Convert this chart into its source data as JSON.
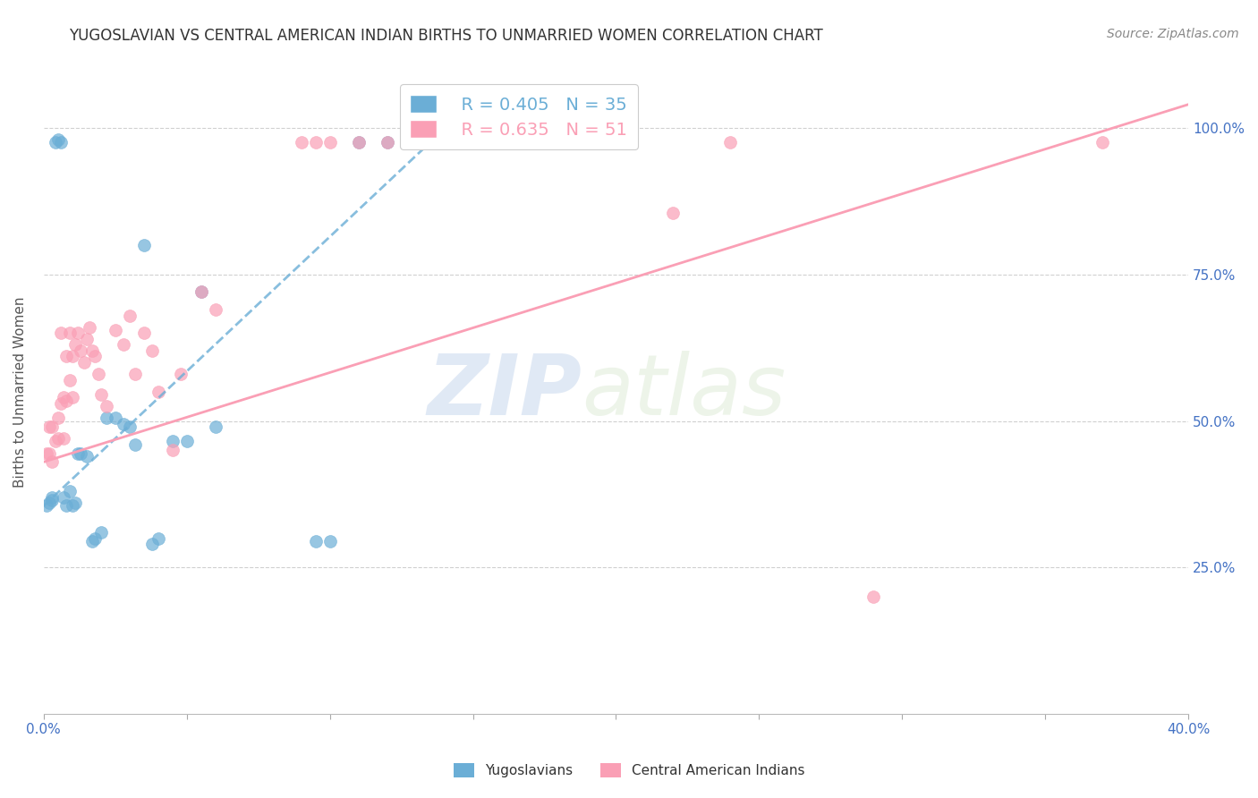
{
  "title": "YUGOSLAVIAN VS CENTRAL AMERICAN INDIAN BIRTHS TO UNMARRIED WOMEN CORRELATION CHART",
  "source": "Source: ZipAtlas.com",
  "ylabel": "Births to Unmarried Women",
  "xlim": [
    0.0,
    0.4
  ],
  "ylim": [
    0.0,
    1.1
  ],
  "watermark_zip": "ZIP",
  "watermark_atlas": "atlas",
  "legend_blue_r": "R = 0.405",
  "legend_blue_n": "N = 35",
  "legend_pink_r": "R = 0.635",
  "legend_pink_n": "N = 51",
  "blue_color": "#6baed6",
  "pink_color": "#fa9fb5",
  "blue_label": "Yugoslavians",
  "pink_label": "Central American Indians",
  "blue_scatter_x": [
    0.001,
    0.002,
    0.003,
    0.003,
    0.004,
    0.005,
    0.006,
    0.007,
    0.008,
    0.009,
    0.01,
    0.011,
    0.012,
    0.013,
    0.015,
    0.017,
    0.018,
    0.02,
    0.022,
    0.025,
    0.028,
    0.03,
    0.032,
    0.035,
    0.038,
    0.04,
    0.045,
    0.05,
    0.055,
    0.06,
    0.095,
    0.1,
    0.11,
    0.12,
    0.135
  ],
  "blue_scatter_y": [
    0.355,
    0.36,
    0.37,
    0.365,
    0.975,
    0.98,
    0.975,
    0.37,
    0.355,
    0.38,
    0.355,
    0.36,
    0.445,
    0.445,
    0.44,
    0.295,
    0.3,
    0.31,
    0.505,
    0.505,
    0.495,
    0.49,
    0.46,
    0.8,
    0.29,
    0.3,
    0.465,
    0.465,
    0.72,
    0.49,
    0.295,
    0.295,
    0.975,
    0.975,
    0.975
  ],
  "pink_scatter_x": [
    0.001,
    0.002,
    0.002,
    0.003,
    0.003,
    0.004,
    0.005,
    0.005,
    0.006,
    0.006,
    0.007,
    0.007,
    0.008,
    0.008,
    0.009,
    0.009,
    0.01,
    0.01,
    0.011,
    0.012,
    0.013,
    0.014,
    0.015,
    0.016,
    0.017,
    0.018,
    0.019,
    0.02,
    0.022,
    0.025,
    0.028,
    0.03,
    0.032,
    0.035,
    0.038,
    0.04,
    0.045,
    0.048,
    0.055,
    0.06,
    0.09,
    0.095,
    0.1,
    0.11,
    0.12,
    0.13,
    0.18,
    0.22,
    0.24,
    0.29,
    0.37
  ],
  "pink_scatter_y": [
    0.445,
    0.445,
    0.49,
    0.43,
    0.49,
    0.465,
    0.47,
    0.505,
    0.53,
    0.65,
    0.47,
    0.54,
    0.535,
    0.61,
    0.57,
    0.65,
    0.54,
    0.61,
    0.63,
    0.65,
    0.62,
    0.6,
    0.64,
    0.66,
    0.62,
    0.61,
    0.58,
    0.545,
    0.525,
    0.655,
    0.63,
    0.68,
    0.58,
    0.65,
    0.62,
    0.55,
    0.45,
    0.58,
    0.72,
    0.69,
    0.975,
    0.975,
    0.975,
    0.975,
    0.975,
    0.975,
    0.975,
    0.855,
    0.975,
    0.2,
    0.975
  ],
  "blue_line_x0": 0.0,
  "blue_line_y0": 0.355,
  "blue_line_x1": 0.135,
  "blue_line_y1": 0.975,
  "pink_line_x0": 0.0,
  "pink_line_y0": 0.43,
  "pink_line_x1": 0.4,
  "pink_line_y1": 1.04,
  "title_fontsize": 12,
  "axis_label_fontsize": 11,
  "tick_fontsize": 11,
  "legend_fontsize": 14,
  "source_fontsize": 10
}
